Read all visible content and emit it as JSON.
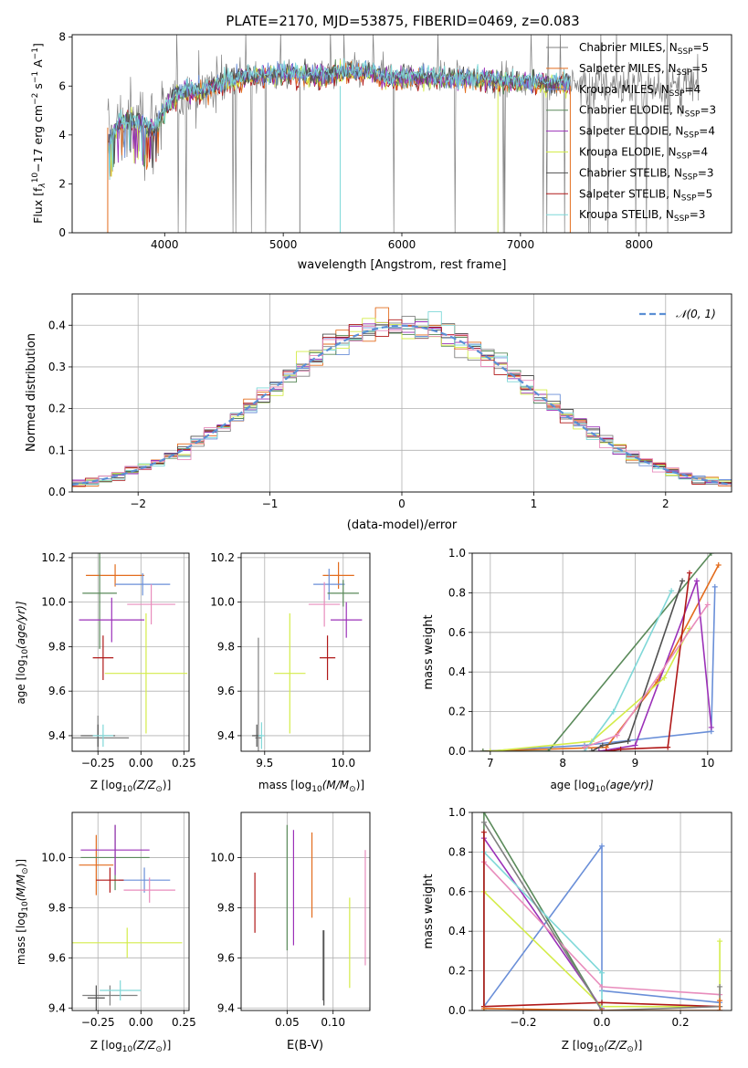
{
  "figure_title": "PLATE=2170, MJD=53875, FIBERID=0469, z=0.083",
  "series_colors": {
    "chabrier_miles": "#808080",
    "salpeter_miles": "#e36c1d",
    "kroupa_miles": "#6a8fd8",
    "chabrier_elodie": "#5a8a5a",
    "salpeter_elodie": "#9b30b8",
    "kroupa_elodie": "#d4ec4a",
    "chabrier_stelib": "#505050",
    "salpeter_stelib": "#b01818",
    "kroupa_stelib": "#7fd8d8"
  },
  "chart_data": [
    {
      "id": "spectrum",
      "type": "line",
      "xlabel": "wavelength [Angstrom, rest frame]",
      "ylabel_parts": [
        "Flux [f",
        "λ",
        "10",
        "−17",
        " erg cm",
        "−2",
        " s",
        "−1",
        " A",
        "−1",
        "]"
      ],
      "xlim": [
        3220,
        8780
      ],
      "ylim": [
        0,
        8.1
      ],
      "xticks": [
        4000,
        5000,
        6000,
        7000,
        8000
      ],
      "yticks": [
        0,
        2,
        4,
        6,
        8
      ],
      "legend": [
        {
          "name": "Chabrier MILES, N",
          "sub": "SSP",
          "tail": "=5",
          "color_key": "chabrier_miles"
        },
        {
          "name": "Salpeter MILES, N",
          "sub": "SSP",
          "tail": "=5",
          "color_key": "salpeter_miles"
        },
        {
          "name": "Kroupa MILES, N",
          "sub": "SSP",
          "tail": "=4",
          "color_key": "kroupa_miles"
        },
        {
          "name": "Chabrier ELODIE, N",
          "sub": "SSP",
          "tail": "=3",
          "color_key": "chabrier_elodie"
        },
        {
          "name": "Salpeter ELODIE, N",
          "sub": "SSP",
          "tail": "=4",
          "color_key": "salpeter_elodie"
        },
        {
          "name": "Kroupa ELODIE, N",
          "sub": "SSP",
          "tail": "=4",
          "color_key": "kroupa_elodie"
        },
        {
          "name": "Chabrier STELIB, N",
          "sub": "SSP",
          "tail": "=3",
          "color_key": "chabrier_stelib"
        },
        {
          "name": "Salpeter STELIB, N",
          "sub": "SSP",
          "tail": "=5",
          "color_key": "salpeter_stelib"
        },
        {
          "name": "Kroupa STELIB, N",
          "sub": "SSP",
          "tail": "=3",
          "color_key": "kroupa_stelib"
        }
      ],
      "model_envelope": {
        "x": [
          3520,
          3600,
          3700,
          3800,
          3900,
          4000,
          4100,
          4200,
          4300,
          4500,
          4700,
          4900,
          5100,
          5300,
          5500,
          5700,
          5900,
          6100,
          6300,
          6500,
          6700,
          6900,
          7100,
          7300,
          7420
        ],
        "y": [
          3.5,
          4.4,
          4.6,
          4.5,
          4.2,
          5.0,
          5.7,
          5.9,
          5.7,
          6.2,
          6.4,
          6.5,
          6.5,
          6.4,
          6.6,
          6.6,
          6.3,
          6.4,
          6.3,
          6.3,
          6.3,
          6.2,
          6.2,
          6.1,
          6.1
        ]
      },
      "data_envelope": {
        "x": [
          3520,
          3600,
          3700,
          3800,
          3900,
          4000,
          4200,
          4500,
          4800,
          5100,
          5400,
          5700,
          6000,
          6300,
          6600,
          6900,
          7200,
          7500,
          7800,
          8100,
          8400,
          8500
        ],
        "y": [
          3.8,
          4.2,
          4.4,
          4.5,
          4.3,
          5.0,
          5.8,
          6.1,
          6.4,
          6.5,
          6.5,
          6.6,
          6.4,
          6.4,
          6.3,
          6.3,
          6.1,
          6.1,
          6.0,
          6.0,
          5.9,
          5.9
        ]
      },
      "drops": [
        {
          "x": 5140,
          "color_key": "chabrier_miles"
        },
        {
          "x": 5480,
          "color_key": "kroupa_stelib"
        },
        {
          "x": 6810,
          "color_key": "kroupa_elodie"
        },
        {
          "x": 7420,
          "color_key": "salpeter_miles"
        }
      ]
    },
    {
      "id": "residual-hist",
      "type": "bar",
      "xlabel": "(data-model)/error",
      "ylabel": "Normed distribution",
      "xlim": [
        -2.5,
        2.5
      ],
      "ylim": [
        0,
        0.475
      ],
      "xticks": [
        -2,
        -1,
        0,
        1,
        2
      ],
      "xtick_labels": [
        "−2",
        "−1",
        "0",
        "1",
        "2"
      ],
      "yticks": [
        0,
        0.1,
        0.2,
        0.3,
        0.4
      ],
      "ytick_labels": [
        "0.0",
        "0.1",
        "0.2",
        "0.3",
        "0.4"
      ],
      "bin_width": 0.1,
      "legend": "𝒩(0, 1)",
      "reference_curve": "normal(0,1)"
    },
    {
      "id": "age-vs-z",
      "type": "scatter",
      "xlabel_main": "Z [log",
      "xlabel_sub": "10",
      "xlabel_rest": "(Z/Z",
      "xlabel_sun": "⊙",
      "xlabel_end": ")]",
      "ylabel_main": "age  [log",
      "ylabel_sub": "10",
      "ylabel_rest": "(age/yr)]",
      "xlim": [
        -0.4,
        0.28
      ],
      "ylim": [
        9.33,
        10.22
      ],
      "xticks": [
        -0.25,
        0.0,
        0.25
      ],
      "xtick_labels": [
        "−0.25",
        "0.00",
        "0.25"
      ],
      "yticks": [
        9.4,
        9.6,
        9.8,
        10.0,
        10.2
      ],
      "ytick_labels": [
        "9.4",
        "9.6",
        "9.8",
        "10.0",
        "10.2"
      ],
      "points": [
        {
          "x": -0.25,
          "y": 9.39,
          "xerr": 0.18,
          "yerr": 0.1,
          "color_key": "chabrier_miles"
        },
        {
          "x": -0.15,
          "y": 10.12,
          "xerr": 0.17,
          "yerr": 0.05,
          "color_key": "salpeter_miles"
        },
        {
          "x": 0.01,
          "y": 10.08,
          "xerr": 0.16,
          "yerr": 0.05,
          "color_key": "kroupa_miles"
        },
        {
          "x": -0.24,
          "y": 10.04,
          "xerr": 0.1,
          "yerr": 0.25,
          "color_key": "chabrier_elodie"
        },
        {
          "x": -0.17,
          "y": 9.92,
          "xerr": 0.19,
          "yerr": 0.1,
          "color_key": "salpeter_elodie"
        },
        {
          "x": 0.03,
          "y": 9.68,
          "xerr": 0.24,
          "yerr": 0.27,
          "color_key": "kroupa_elodie"
        },
        {
          "x": -0.25,
          "y": 9.4,
          "xerr": 0.1,
          "yerr": 0.05,
          "color_key": "chabrier_stelib"
        },
        {
          "x": -0.22,
          "y": 9.75,
          "xerr": 0.06,
          "yerr": 0.1,
          "color_key": "salpeter_stelib"
        },
        {
          "x": -0.22,
          "y": 9.4,
          "xerr": 0.06,
          "yerr": 0.05,
          "color_key": "kroupa_stelib"
        },
        {
          "x": 0.06,
          "y": 9.99,
          "xerr": 0.14,
          "yerr": 0.09,
          "color_key": "pink"
        }
      ]
    },
    {
      "id": "age-vs-mass",
      "type": "scatter",
      "xlabel_main": "mass [log",
      "xlabel_sub": "10",
      "xlabel_rest": "(M/M",
      "xlabel_sun": "⊙",
      "xlabel_end": ")]",
      "xlim": [
        9.35,
        10.17
      ],
      "ylim": [
        9.33,
        10.22
      ],
      "xticks": [
        9.5,
        10.0
      ],
      "xtick_labels": [
        "9.5",
        "10.0"
      ],
      "yticks": [
        9.4,
        9.6,
        9.8,
        10.0,
        10.2
      ],
      "ytick_labels": [
        "9.4",
        "9.6",
        "9.8",
        "10.0",
        "10.2"
      ],
      "points": [
        {
          "x": 9.46,
          "y": 9.39,
          "xerr": 0.02,
          "yerr": 0.45,
          "color_key": "chabrier_miles"
        },
        {
          "x": 9.97,
          "y": 10.12,
          "xerr": 0.1,
          "yerr": 0.06,
          "color_key": "salpeter_miles"
        },
        {
          "x": 9.91,
          "y": 10.08,
          "xerr": 0.1,
          "yerr": 0.07,
          "color_key": "kroupa_miles"
        },
        {
          "x": 10.0,
          "y": 10.04,
          "xerr": 0.1,
          "yerr": 0.06,
          "color_key": "chabrier_elodie"
        },
        {
          "x": 10.02,
          "y": 9.92,
          "xerr": 0.1,
          "yerr": 0.08,
          "color_key": "salpeter_elodie"
        },
        {
          "x": 9.66,
          "y": 9.68,
          "xerr": 0.1,
          "yerr": 0.27,
          "color_key": "kroupa_elodie"
        },
        {
          "x": 9.45,
          "y": 9.4,
          "xerr": 0.03,
          "yerr": 0.05,
          "color_key": "chabrier_stelib"
        },
        {
          "x": 9.9,
          "y": 9.75,
          "xerr": 0.05,
          "yerr": 0.1,
          "color_key": "salpeter_stelib"
        },
        {
          "x": 9.48,
          "y": 9.4,
          "xerr": 0.02,
          "yerr": 0.06,
          "color_key": "kroupa_stelib"
        },
        {
          "x": 9.88,
          "y": 9.99,
          "xerr": 0.1,
          "yerr": 0.1,
          "color_key": "pink"
        }
      ]
    },
    {
      "id": "mass-weight-vs-age",
      "type": "line",
      "xlabel_main": "age  [log",
      "xlabel_sub": "10",
      "xlabel_rest": "(age/yr)]",
      "ylabel": "mass weight",
      "xlim": [
        6.75,
        10.33
      ],
      "ylim": [
        0,
        1
      ],
      "xticks": [
        7,
        8,
        9,
        10
      ],
      "xtick_labels": [
        "7",
        "8",
        "9",
        "10"
      ],
      "yticks": [
        0,
        0.2,
        0.4,
        0.6,
        0.8,
        1.0
      ],
      "ytick_labels": [
        "0.0",
        "0.2",
        "0.4",
        "0.6",
        "0.8",
        "1.0"
      ],
      "series": [
        {
          "color_key": "kroupa_miles",
          "x": [
            6.9,
            8.3,
            10.05,
            10.1
          ],
          "y": [
            0.0,
            0.03,
            0.1,
            0.83
          ]
        },
        {
          "color_key": "salpeter_miles",
          "x": [
            6.9,
            8.6,
            9.3,
            10.15
          ],
          "y": [
            0.0,
            0.02,
            0.35,
            0.94
          ]
        },
        {
          "color_key": "chabrier_elodie",
          "x": [
            6.9,
            7.8,
            10.05
          ],
          "y": [
            0.0,
            0.0,
            1.0
          ]
        },
        {
          "color_key": "salpeter_elodie",
          "x": [
            8.5,
            9.0,
            9.85,
            10.05
          ],
          "y": [
            0.0,
            0.03,
            0.86,
            0.12
          ]
        },
        {
          "color_key": "kroupa_elodie",
          "x": [
            7.0,
            8.4,
            9.4,
            9.75
          ],
          "y": [
            0.0,
            0.05,
            0.37,
            0.62
          ]
        },
        {
          "color_key": "salpeter_stelib",
          "x": [
            8.6,
            8.8,
            9.45,
            9.75
          ],
          "y": [
            0.0,
            0.01,
            0.02,
            0.9
          ]
        },
        {
          "color_key": "chabrier_stelib",
          "x": [
            8.4,
            8.55,
            8.9,
            9.65
          ],
          "y": [
            0.0,
            0.03,
            0.05,
            0.86
          ]
        },
        {
          "color_key": "kroupa_stelib",
          "x": [
            8.3,
            8.7,
            9.5
          ],
          "y": [
            0.0,
            0.2,
            0.81
          ]
        },
        {
          "color_key": "pink",
          "x": [
            8.3,
            8.75,
            10.0
          ],
          "y": [
            0.02,
            0.08,
            0.74
          ]
        }
      ]
    },
    {
      "id": "mass-vs-z",
      "type": "scatter",
      "ylabel_main": "mass [log",
      "ylabel_sub": "10",
      "ylabel_rest": "(M/M",
      "ylabel_sun": "⊙",
      "ylabel_end": ")]",
      "xlabel_main": "Z [log",
      "xlabel_sub": "10",
      "xlabel_rest": "(Z/Z",
      "xlabel_sun": "⊙",
      "xlabel_end": ")]",
      "xlim": [
        -0.4,
        0.28
      ],
      "ylim": [
        9.39,
        10.18
      ],
      "xticks": [
        -0.25,
        0.0,
        0.25
      ],
      "xtick_labels": [
        "−0.25",
        "0.00",
        "0.25"
      ],
      "yticks": [
        9.4,
        9.6,
        9.8,
        10.0
      ],
      "ytick_labels": [
        "9.4",
        "9.6",
        "9.8",
        "10.0"
      ],
      "points": [
        {
          "x": -0.18,
          "y": 9.45,
          "xerr": 0.16,
          "yerr": 0.04,
          "color_key": "chabrier_miles"
        },
        {
          "x": -0.26,
          "y": 9.97,
          "xerr": 0.1,
          "yerr": 0.12,
          "color_key": "salpeter_miles"
        },
        {
          "x": 0.02,
          "y": 9.91,
          "xerr": 0.15,
          "yerr": 0.05,
          "color_key": "kroupa_miles"
        },
        {
          "x": -0.15,
          "y": 10.0,
          "xerr": 0.2,
          "yerr": 0.13,
          "color_key": "chabrier_elodie"
        },
        {
          "x": -0.15,
          "y": 10.03,
          "xerr": 0.2,
          "yerr": 0.1,
          "color_key": "salpeter_elodie"
        },
        {
          "x": -0.08,
          "y": 9.66,
          "xerr": 0.32,
          "yerr": 0.06,
          "color_key": "kroupa_elodie"
        },
        {
          "x": -0.26,
          "y": 9.44,
          "xerr": 0.05,
          "yerr": 0.05,
          "color_key": "chabrier_stelib"
        },
        {
          "x": -0.18,
          "y": 9.91,
          "xerr": 0.08,
          "yerr": 0.05,
          "color_key": "salpeter_stelib"
        },
        {
          "x": -0.12,
          "y": 9.47,
          "xerr": 0.12,
          "yerr": 0.04,
          "color_key": "kroupa_stelib"
        },
        {
          "x": 0.05,
          "y": 9.87,
          "xerr": 0.15,
          "yerr": 0.05,
          "color_key": "pink"
        }
      ]
    },
    {
      "id": "mass-vs-ebv",
      "type": "scatter",
      "xlabel": "E(B-V)",
      "xlim": [
        0.0,
        0.14
      ],
      "ylim": [
        9.39,
        10.18
      ],
      "xticks": [
        0.05,
        0.1
      ],
      "xtick_labels": [
        "0.05",
        "0.10"
      ],
      "yticks": [
        9.4,
        9.6,
        9.8,
        10.0
      ],
      "ytick_labels": [
        "9.4",
        "9.6",
        "9.8",
        "10.0"
      ],
      "points": [
        {
          "x": 0.089,
          "y": 9.57,
          "yerr": 0.14,
          "color_key": "chabrier_miles"
        },
        {
          "x": 0.077,
          "y": 9.93,
          "yerr": 0.17,
          "color_key": "salpeter_miles"
        },
        {
          "x": 0.015,
          "y": 9.82,
          "yerr": 0.12,
          "color_key": "salpeter_stelib"
        },
        {
          "x": 0.05,
          "y": 9.88,
          "yerr": 0.25,
          "color_key": "chabrier_elodie"
        },
        {
          "x": 0.057,
          "y": 9.88,
          "yerr": 0.23,
          "color_key": "salpeter_elodie"
        },
        {
          "x": 0.118,
          "y": 9.66,
          "yerr": 0.18,
          "color_key": "kroupa_elodie"
        },
        {
          "x": 0.09,
          "y": 9.56,
          "yerr": 0.15,
          "color_key": "chabrier_stelib"
        },
        {
          "x": 0.135,
          "y": 9.8,
          "yerr": 0.23,
          "color_key": "pink"
        }
      ]
    },
    {
      "id": "mass-weight-vs-z",
      "type": "line",
      "xlabel_main": "Z [log",
      "xlabel_sub": "10",
      "xlabel_rest": "(Z/Z",
      "xlabel_sun": "⊙",
      "xlabel_end": ")]",
      "ylabel": "mass weight",
      "xlim": [
        -0.33,
        0.33
      ],
      "ylim": [
        0,
        1
      ],
      "xticks": [
        -0.2,
        0.0,
        0.2
      ],
      "xtick_labels": [
        "−0.2",
        "0.0",
        "0.2"
      ],
      "yticks": [
        0,
        0.2,
        0.4,
        0.6,
        0.8,
        1.0
      ],
      "ytick_labels": [
        "0.0",
        "0.2",
        "0.4",
        "0.6",
        "0.8",
        "1.0"
      ],
      "series": [
        {
          "color_key": "kroupa_miles",
          "x": [
            -0.3,
            0.0,
            0.0,
            0.3
          ],
          "y": [
            0.02,
            0.83,
            0.1,
            0.04
          ]
        },
        {
          "color_key": "chabrier_elodie",
          "x": [
            -0.3,
            -0.3,
            0.0
          ],
          "y": [
            0.0,
            1.0,
            0.0
          ]
        },
        {
          "color_key": "salpeter_elodie",
          "x": [
            -0.3,
            0.0,
            0.0
          ],
          "y": [
            0.87,
            0.01,
            0.0
          ]
        },
        {
          "color_key": "kroupa_elodie",
          "x": [
            -0.3,
            0.0,
            0.3,
            0.3
          ],
          "y": [
            0.6,
            0.02,
            0.02,
            0.35
          ]
        },
        {
          "color_key": "kroupa_stelib",
          "x": [
            -0.3,
            0.0,
            0.0
          ],
          "y": [
            0.8,
            0.19,
            0.0
          ]
        },
        {
          "color_key": "pink",
          "x": [
            -0.3,
            0.0,
            0.3
          ],
          "y": [
            0.75,
            0.12,
            0.08
          ]
        },
        {
          "color_key": "salpeter_stelib",
          "x": [
            -0.3,
            -0.3,
            0.0,
            0.3,
            0.3
          ],
          "y": [
            0.9,
            0.02,
            0.04,
            0.02,
            0.0
          ]
        },
        {
          "color_key": "chabrier_miles",
          "x": [
            -0.3,
            0.0,
            0.3,
            0.3
          ],
          "y": [
            0.95,
            0.0,
            0.02,
            0.12
          ]
        },
        {
          "color_key": "salpeter_miles",
          "x": [
            -0.3,
            0.0,
            0.3,
            0.3
          ],
          "y": [
            0.01,
            0.0,
            0.0,
            0.05
          ]
        }
      ]
    }
  ],
  "extra_colors": {
    "pink": "#e88cbc",
    "normal_curve": "#5b8fd4"
  }
}
